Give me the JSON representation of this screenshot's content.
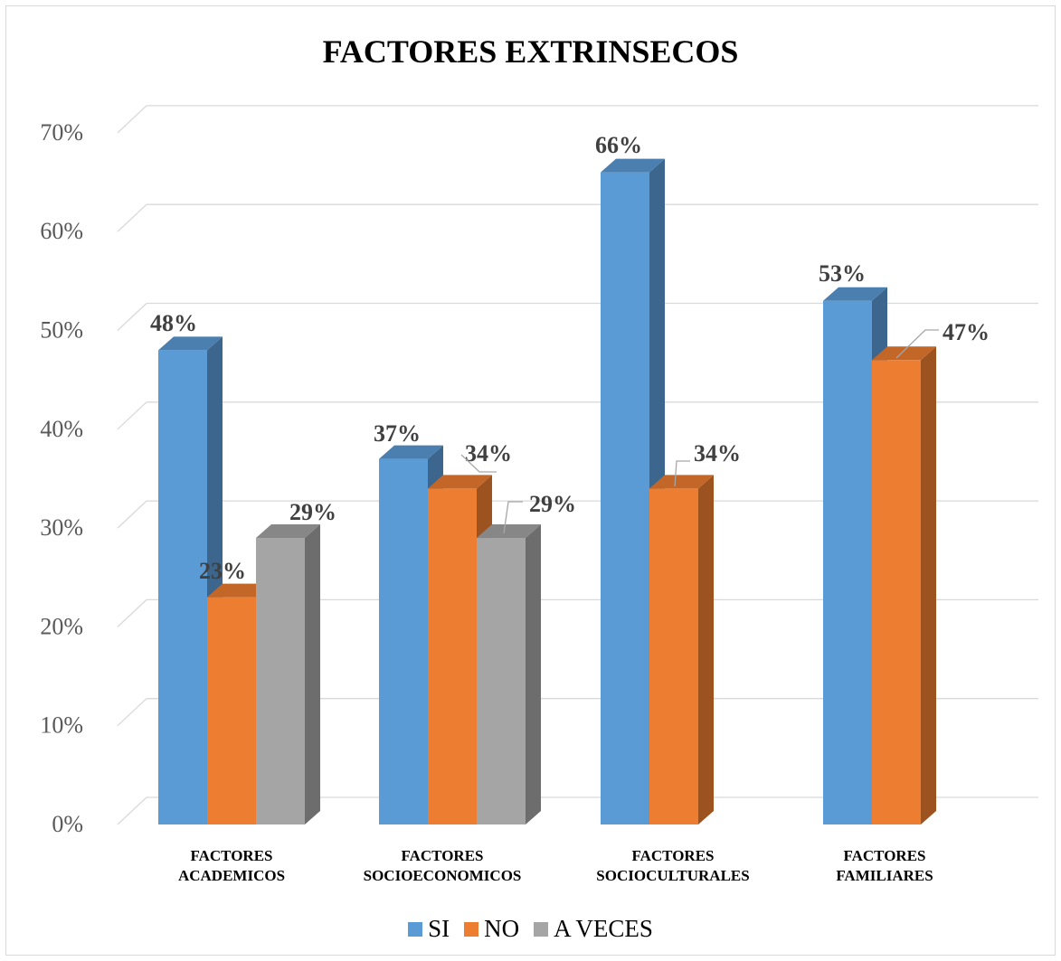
{
  "chart_data": {
    "type": "bar",
    "title": "FACTORES EXTRINSECOS",
    "categories": [
      [
        "FACTORES",
        "ACADEMICOS"
      ],
      [
        "FACTORES",
        "SOCIOECONOMICOS"
      ],
      [
        "FACTORES",
        "SOCIOCULTURALES"
      ],
      [
        "FACTORES",
        "FAMILIARES"
      ]
    ],
    "series": [
      {
        "name": "SI",
        "color": "#5b9bd5",
        "values": [
          48,
          37,
          66,
          53
        ]
      },
      {
        "name": "NO",
        "color": "#ed7d31",
        "values": [
          23,
          34,
          34,
          47
        ]
      },
      {
        "name": "A VECES",
        "color": "#a5a5a5",
        "values": [
          29,
          29,
          null,
          null
        ]
      }
    ],
    "data_labels": [
      [
        "48%",
        "23%",
        "29%"
      ],
      [
        "37%",
        "34%",
        "29%"
      ],
      [
        "66%",
        "34%",
        null
      ],
      [
        "53%",
        "47%",
        null
      ]
    ],
    "ylim": [
      0,
      70
    ],
    "yticks": [
      "0%",
      "10%",
      "20%",
      "30%",
      "40%",
      "50%",
      "60%",
      "70%"
    ],
    "grid": true,
    "legend_position": "bottom",
    "style": "3d-clustered-column"
  }
}
